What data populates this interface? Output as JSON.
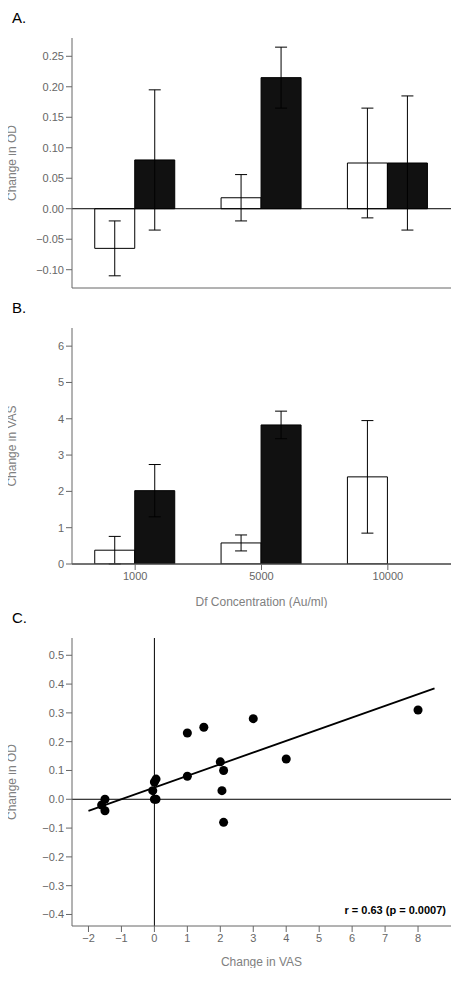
{
  "chart_data": [
    {
      "type": "bar",
      "title": "A.",
      "categories": [
        null,
        null,
        null
      ],
      "series": [
        {
          "color": "#ffffff",
          "values": [
            -0.065,
            0.018,
            0.075
          ],
          "errors": [
            0.045,
            0.038,
            0.09
          ]
        },
        {
          "color": "#111111",
          "values": [
            0.08,
            0.215,
            0.075
          ],
          "errors": [
            0.115,
            0.05,
            0.11
          ]
        }
      ],
      "ylabel": "Change in OD",
      "ylim": [
        -0.13,
        0.28
      ],
      "yticks": [
        {
          "value": -0.1,
          "label": "−0.10"
        },
        {
          "value": -0.05,
          "label": "−0.05"
        },
        {
          "value": 0.0,
          "label": "0.00"
        },
        0.05,
        {
          "value": 0.1,
          "label": "0.10"
        },
        0.15,
        {
          "value": 0.2,
          "label": "0.20"
        },
        0.25
      ],
      "tick_labels": "y"
    },
    {
      "type": "bar",
      "title": "B.",
      "categories": [
        "1000",
        "5000",
        "10000"
      ],
      "series": [
        {
          "color": "#ffffff",
          "values": [
            0.38,
            0.58,
            2.4
          ],
          "errors": [
            0.38,
            0.22,
            1.55
          ]
        },
        {
          "color": "#111111",
          "values": [
            2.02,
            3.83,
            0.0
          ],
          "errors": [
            0.72,
            0.38,
            0.0
          ]
        }
      ],
      "ylabel": "Change in VAS",
      "xlabel": "Df Concentration (Au/ml)",
      "ylim": [
        0,
        6.5
      ],
      "yticks": [
        0,
        1,
        2,
        3,
        4,
        5,
        6
      ]
    },
    {
      "type": "scatter",
      "title": "C.",
      "series": [
        {
          "type": "scatter",
          "color": "#000000",
          "x": [
            -1.6,
            -1.5,
            -1.5,
            -0.05,
            0.0,
            0.0,
            0.05,
            0.05,
            1.0,
            1.0,
            1.5,
            2.0,
            2.05,
            2.1,
            2.1,
            3.0,
            4.0,
            8.0
          ],
          "values": [
            -0.02,
            -0.04,
            0.0,
            0.03,
            0.06,
            0.0,
            0.07,
            0.0,
            0.23,
            0.08,
            0.25,
            0.13,
            0.03,
            0.1,
            -0.08,
            0.28,
            0.14,
            0.31
          ]
        },
        {
          "type": "line",
          "color": "#000000",
          "x": [
            -2.0,
            8.5
          ],
          "values": [
            -0.04,
            0.385
          ]
        }
      ],
      "xlabel": "Change in VAS",
      "ylabel": "Change in OD",
      "annotation": "r = 0.63 (p = 0.0007)",
      "xlim": [
        -2.5,
        9.0
      ],
      "ylim": [
        -0.44,
        0.56
      ],
      "xticks": [
        {
          "value": -2,
          "label": "−2"
        },
        {
          "value": -1,
          "label": "−1"
        },
        0,
        1,
        2,
        3,
        4,
        5,
        6,
        7,
        8
      ],
      "yticks": [
        {
          "value": -0.4,
          "label": "−0.4"
        },
        {
          "value": -0.3,
          "label": "−0.3"
        },
        {
          "value": -0.2,
          "label": "−0.2"
        },
        {
          "value": -0.1,
          "label": "−0.1"
        },
        {
          "value": 0.0,
          "label": "0.0"
        },
        0.1,
        0.2,
        0.3,
        0.4,
        0.5
      ]
    }
  ]
}
